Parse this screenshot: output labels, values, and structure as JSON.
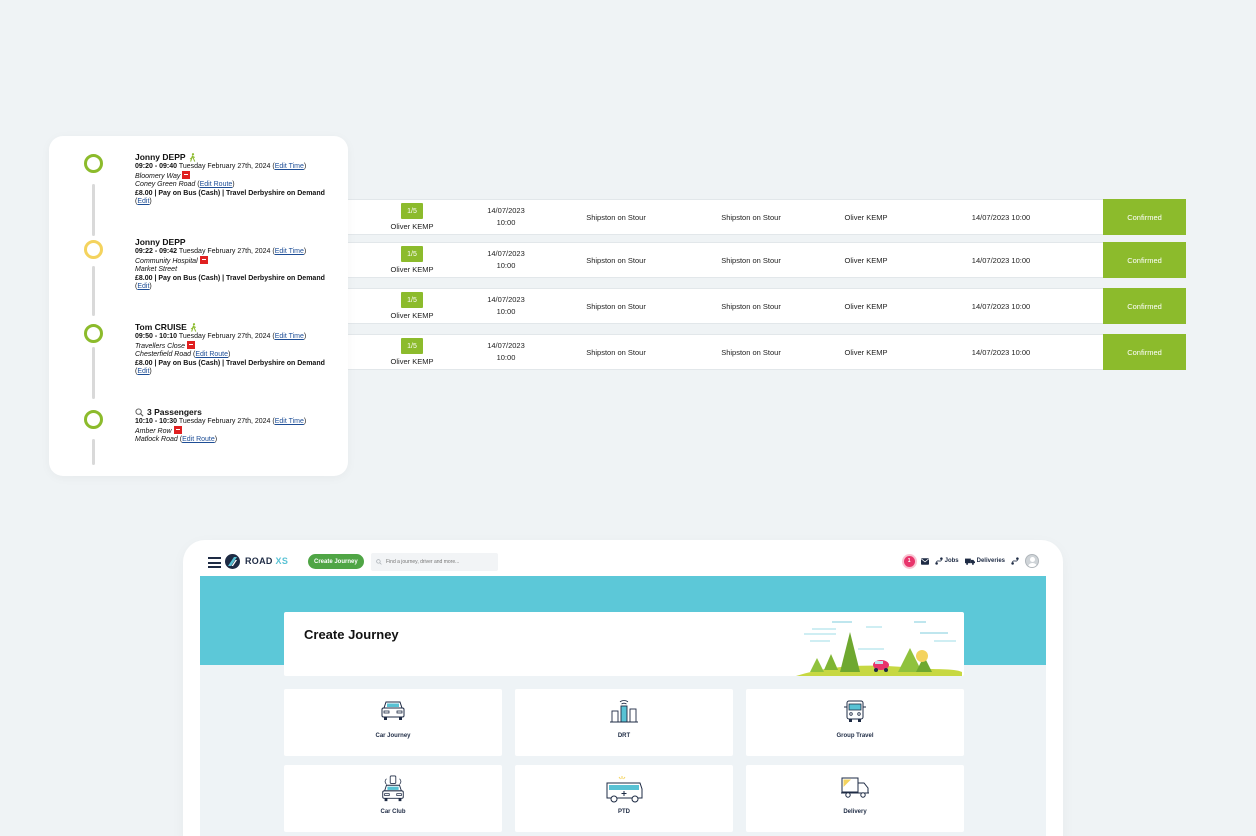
{
  "journey_rows": [
    {
      "occupancy": "1/5",
      "driver_small": "Oliver KEMP",
      "date": "14/07/2023",
      "time": "10:00",
      "from": "Shipston on Stour",
      "to": "Shipston on Stour",
      "driver": "Oliver KEMP",
      "datetime": "14/07/2023 10:00",
      "status": "Confirmed"
    },
    {
      "occupancy": "1/5",
      "driver_small": "Oliver KEMP",
      "date": "14/07/2023",
      "time": "10:00",
      "from": "Shipston on Stour",
      "to": "Shipston on Stour",
      "driver": "Oliver KEMP",
      "datetime": "14/07/2023 10:00",
      "status": "Confirmed"
    },
    {
      "occupancy": "1/5",
      "driver_small": "Oliver KEMP",
      "date": "14/07/2023",
      "time": "10:00",
      "from": "Shipston on Stour",
      "to": "Shipston on Stour",
      "driver": "Oliver KEMP",
      "datetime": "14/07/2023 10:00",
      "status": "Confirmed"
    },
    {
      "occupancy": "1/5",
      "driver_small": "Oliver KEMP",
      "date": "14/07/2023",
      "time": "10:00",
      "from": "Shipston on Stour",
      "to": "Shipston on Stour",
      "driver": "Oliver KEMP",
      "datetime": "14/07/2023 10:00",
      "status": "Confirmed"
    }
  ],
  "timeline": [
    {
      "name": "Jonny DEPP",
      "time_range": "09:20 - 09:40",
      "date": "Tuesday February 27th, 2024",
      "edit_time": "Edit Time",
      "pickup": "Bloomery Way",
      "dropoff": "Coney Green Road",
      "edit_route": "Edit Route",
      "fare": "£8.00 | Pay on Bus (Cash) | Travel Derbyshire on Demand",
      "edit": "Edit"
    },
    {
      "name": "Jonny DEPP",
      "time_range": "09:22 - 09:42",
      "date": "Tuesday February 27th, 2024",
      "edit_time": "Edit Time",
      "pickup": "Community Hospital",
      "dropoff": "Market Street",
      "fare": "£8.00 | Pay on Bus (Cash) | Travel Derbyshire on Demand",
      "edit": "Edit"
    },
    {
      "name": "Tom CRUISE",
      "time_range": "09:50 - 10:10",
      "date": "Tuesday February 27th, 2024",
      "edit_time": "Edit Time",
      "pickup": "Travellers Close",
      "dropoff": "Chesterfield Road",
      "edit_route": "Edit Route",
      "fare": "£8.00 | Pay on Bus (Cash) | Travel Derbyshire on Demand",
      "edit": "Edit"
    },
    {
      "name": "3 Passengers",
      "time_range": "10:10 - 10:30",
      "date": "Tuesday February 27th, 2024",
      "edit_time": "Edit Time",
      "pickup": "Amber Row",
      "dropoff": "Matlock Road",
      "edit_route": "Edit Route"
    }
  ],
  "app": {
    "logo_road": "ROAD",
    "logo_xs": "XS",
    "create_button": "Create Journey",
    "search_placeholder": "Find a journey, driver and more...",
    "notifications_count": "1",
    "jobs_label": "Jobs",
    "deliveries_label": "Deliveries",
    "page_title": "Create Journey",
    "tiles": [
      {
        "label": "Car Journey",
        "icon": "car-icon"
      },
      {
        "label": "DRT",
        "icon": "city-icon"
      },
      {
        "label": "Group Travel",
        "icon": "bus-icon"
      },
      {
        "label": "Car Club",
        "icon": "car-club-icon"
      },
      {
        "label": "PTD",
        "icon": "ambulance-icon"
      },
      {
        "label": "Delivery",
        "icon": "delivery-truck-icon"
      }
    ]
  },
  "colors": {
    "accent_green": "#8cbb2c",
    "teal": "#5cc8d8",
    "create_button_green": "#4fa545",
    "notification_pink": "#e8346b",
    "timeline_yellow": "#f4d35e",
    "link_blue": "#1e4e96",
    "rail_red": "#e02020"
  }
}
